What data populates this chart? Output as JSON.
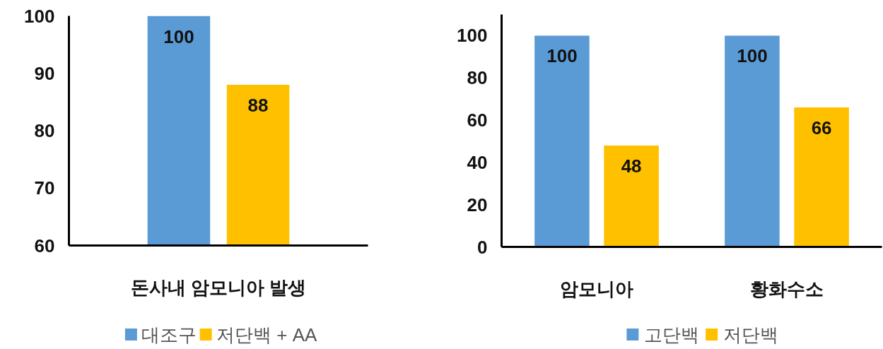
{
  "chart_data": [
    {
      "type": "bar",
      "categories": [
        "돈사내 암모니아 발생"
      ],
      "series": [
        {
          "name": "대조구",
          "color": "#5b9bd5",
          "values": [
            100
          ]
        },
        {
          "name": "저단백 + AA",
          "color": "#ffc000",
          "values": [
            88
          ]
        }
      ],
      "ylim": [
        60,
        100
      ],
      "yticks": [
        60,
        70,
        80,
        90,
        100
      ],
      "data_labels": true,
      "legend": "bottom"
    },
    {
      "type": "bar",
      "categories": [
        "암모니아",
        "황화수소"
      ],
      "series": [
        {
          "name": "고단백",
          "color": "#5b9bd5",
          "values": [
            100,
            100
          ]
        },
        {
          "name": "저단백",
          "color": "#ffc000",
          "values": [
            48,
            66
          ]
        }
      ],
      "ylim": [
        0,
        110
      ],
      "yticks": [
        0,
        20,
        40,
        60,
        80,
        100
      ],
      "data_labels": true,
      "legend": "bottom"
    }
  ]
}
